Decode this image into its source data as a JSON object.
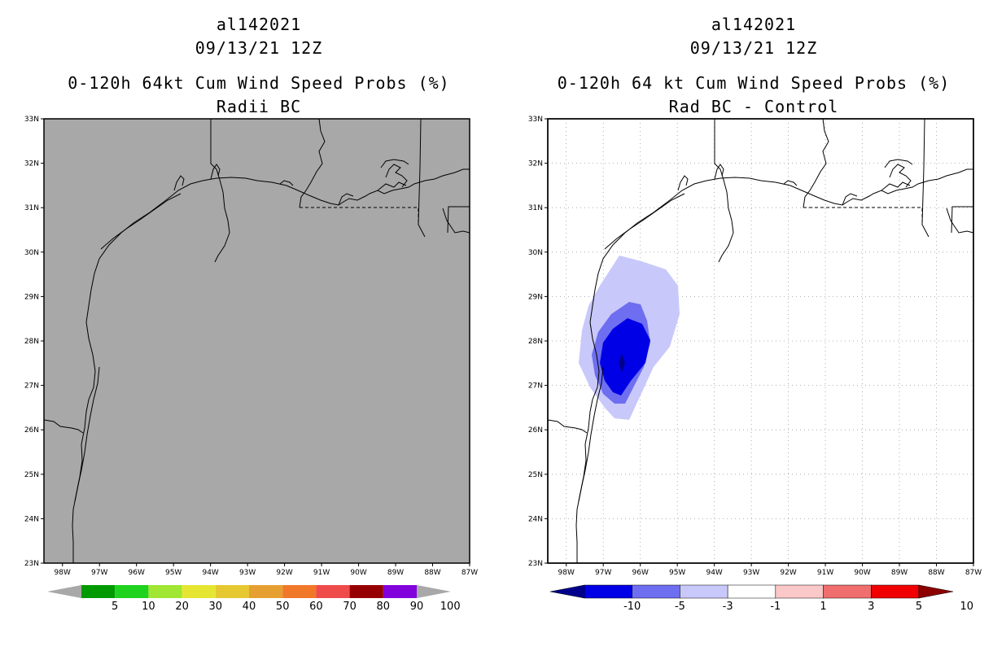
{
  "left_panel": {
    "storm": "al142021",
    "datetime": "09/13/21 12Z",
    "product": "0-120h 64kt Cum Wind Speed Probs (%)",
    "subtitle": "Radii BC",
    "lat_labels": [
      "33N",
      "32N",
      "31N",
      "30N",
      "29N",
      "28N",
      "27N",
      "26N",
      "25N",
      "24N",
      "23N"
    ],
    "lon_labels": [
      "98W",
      "97W",
      "96W",
      "95W",
      "94W",
      "93W",
      "92W",
      "91W",
      "90W",
      "89W",
      "88W",
      "87W"
    ],
    "colorbar": {
      "labels": [
        "5",
        "10",
        "20",
        "30",
        "40",
        "50",
        "60",
        "70",
        "80",
        "90",
        "100"
      ],
      "colors": [
        "#a8a8a8",
        "#009a00",
        "#1ed21e",
        "#a0e632",
        "#e6e632",
        "#e6c832",
        "#e6a032",
        "#f07828",
        "#f04b4b",
        "#960000",
        "#8200dc",
        "#a8a8a8"
      ]
    }
  },
  "right_panel": {
    "storm": "al142021",
    "datetime": "09/13/21 12Z",
    "product": "0-120h 64 kt Cum Wind Speed Probs (%)",
    "subtitle": "Rad BC - Control",
    "lat_labels": [
      "33N",
      "32N",
      "31N",
      "30N",
      "29N",
      "28N",
      "27N",
      "26N",
      "25N",
      "24N",
      "23N"
    ],
    "lon_labels": [
      "98W",
      "97W",
      "96W",
      "95W",
      "94W",
      "93W",
      "92W",
      "91W",
      "90W",
      "89W",
      "88W",
      "87W"
    ],
    "colorbar": {
      "labels": [
        "-10",
        "-5",
        "-3",
        "-1",
        "1",
        "3",
        "5",
        "10"
      ],
      "colors": [
        "#00008c",
        "#0000e6",
        "#6e6ef0",
        "#c8c8fa",
        "#ffffff",
        "#fac8c8",
        "#f06e6e",
        "#f00000",
        "#8c0000"
      ]
    },
    "contours": {
      "levels": [
        "-1",
        "-3",
        "-5",
        "-10"
      ],
      "colors": [
        "#c8c8fa",
        "#6e6ef0",
        "#0000e6",
        "#00008c"
      ]
    }
  }
}
